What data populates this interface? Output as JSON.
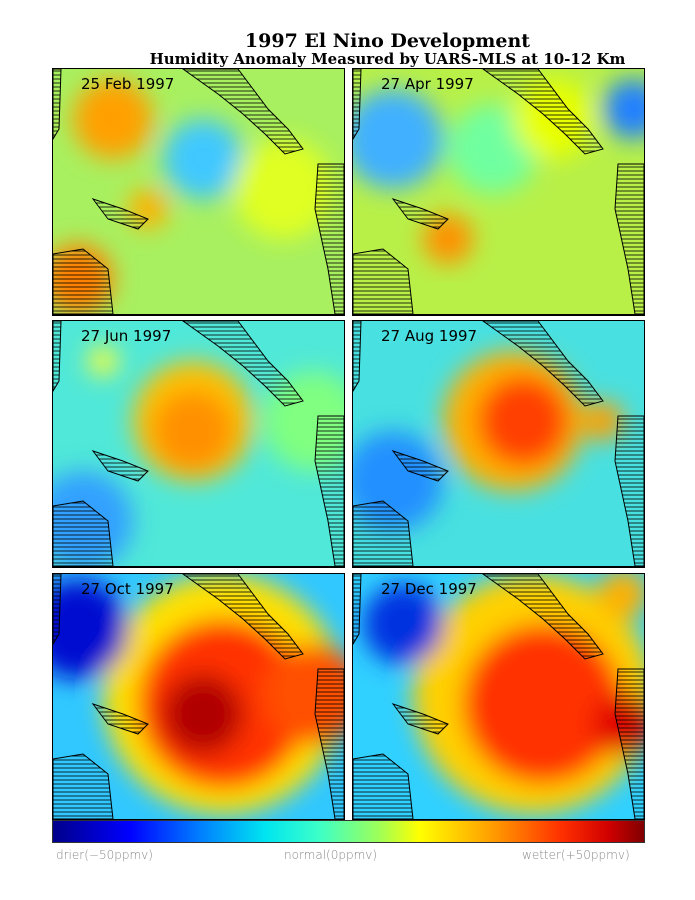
{
  "title": "1997 El Nino Development",
  "subtitle": "Humidity Anomaly Measured by UARS-MLS at 10-12 Km",
  "panels": [
    {
      "date": "25 Feb 1997"
    },
    {
      "date": "27 Apr 1997"
    },
    {
      "date": "27 Jun 1997"
    },
    {
      "date": "27 Aug 1997"
    },
    {
      "date": "27 Oct 1997"
    },
    {
      "date": "27 Dec 1997"
    }
  ],
  "colorbar": {
    "type": "jet",
    "min_label": "drier(−50ppmv)",
    "mid_label": "normal(0ppmv)",
    "max_label": "wetter(+50ppmv)",
    "range_ppmv": [
      -50,
      50
    ]
  }
}
